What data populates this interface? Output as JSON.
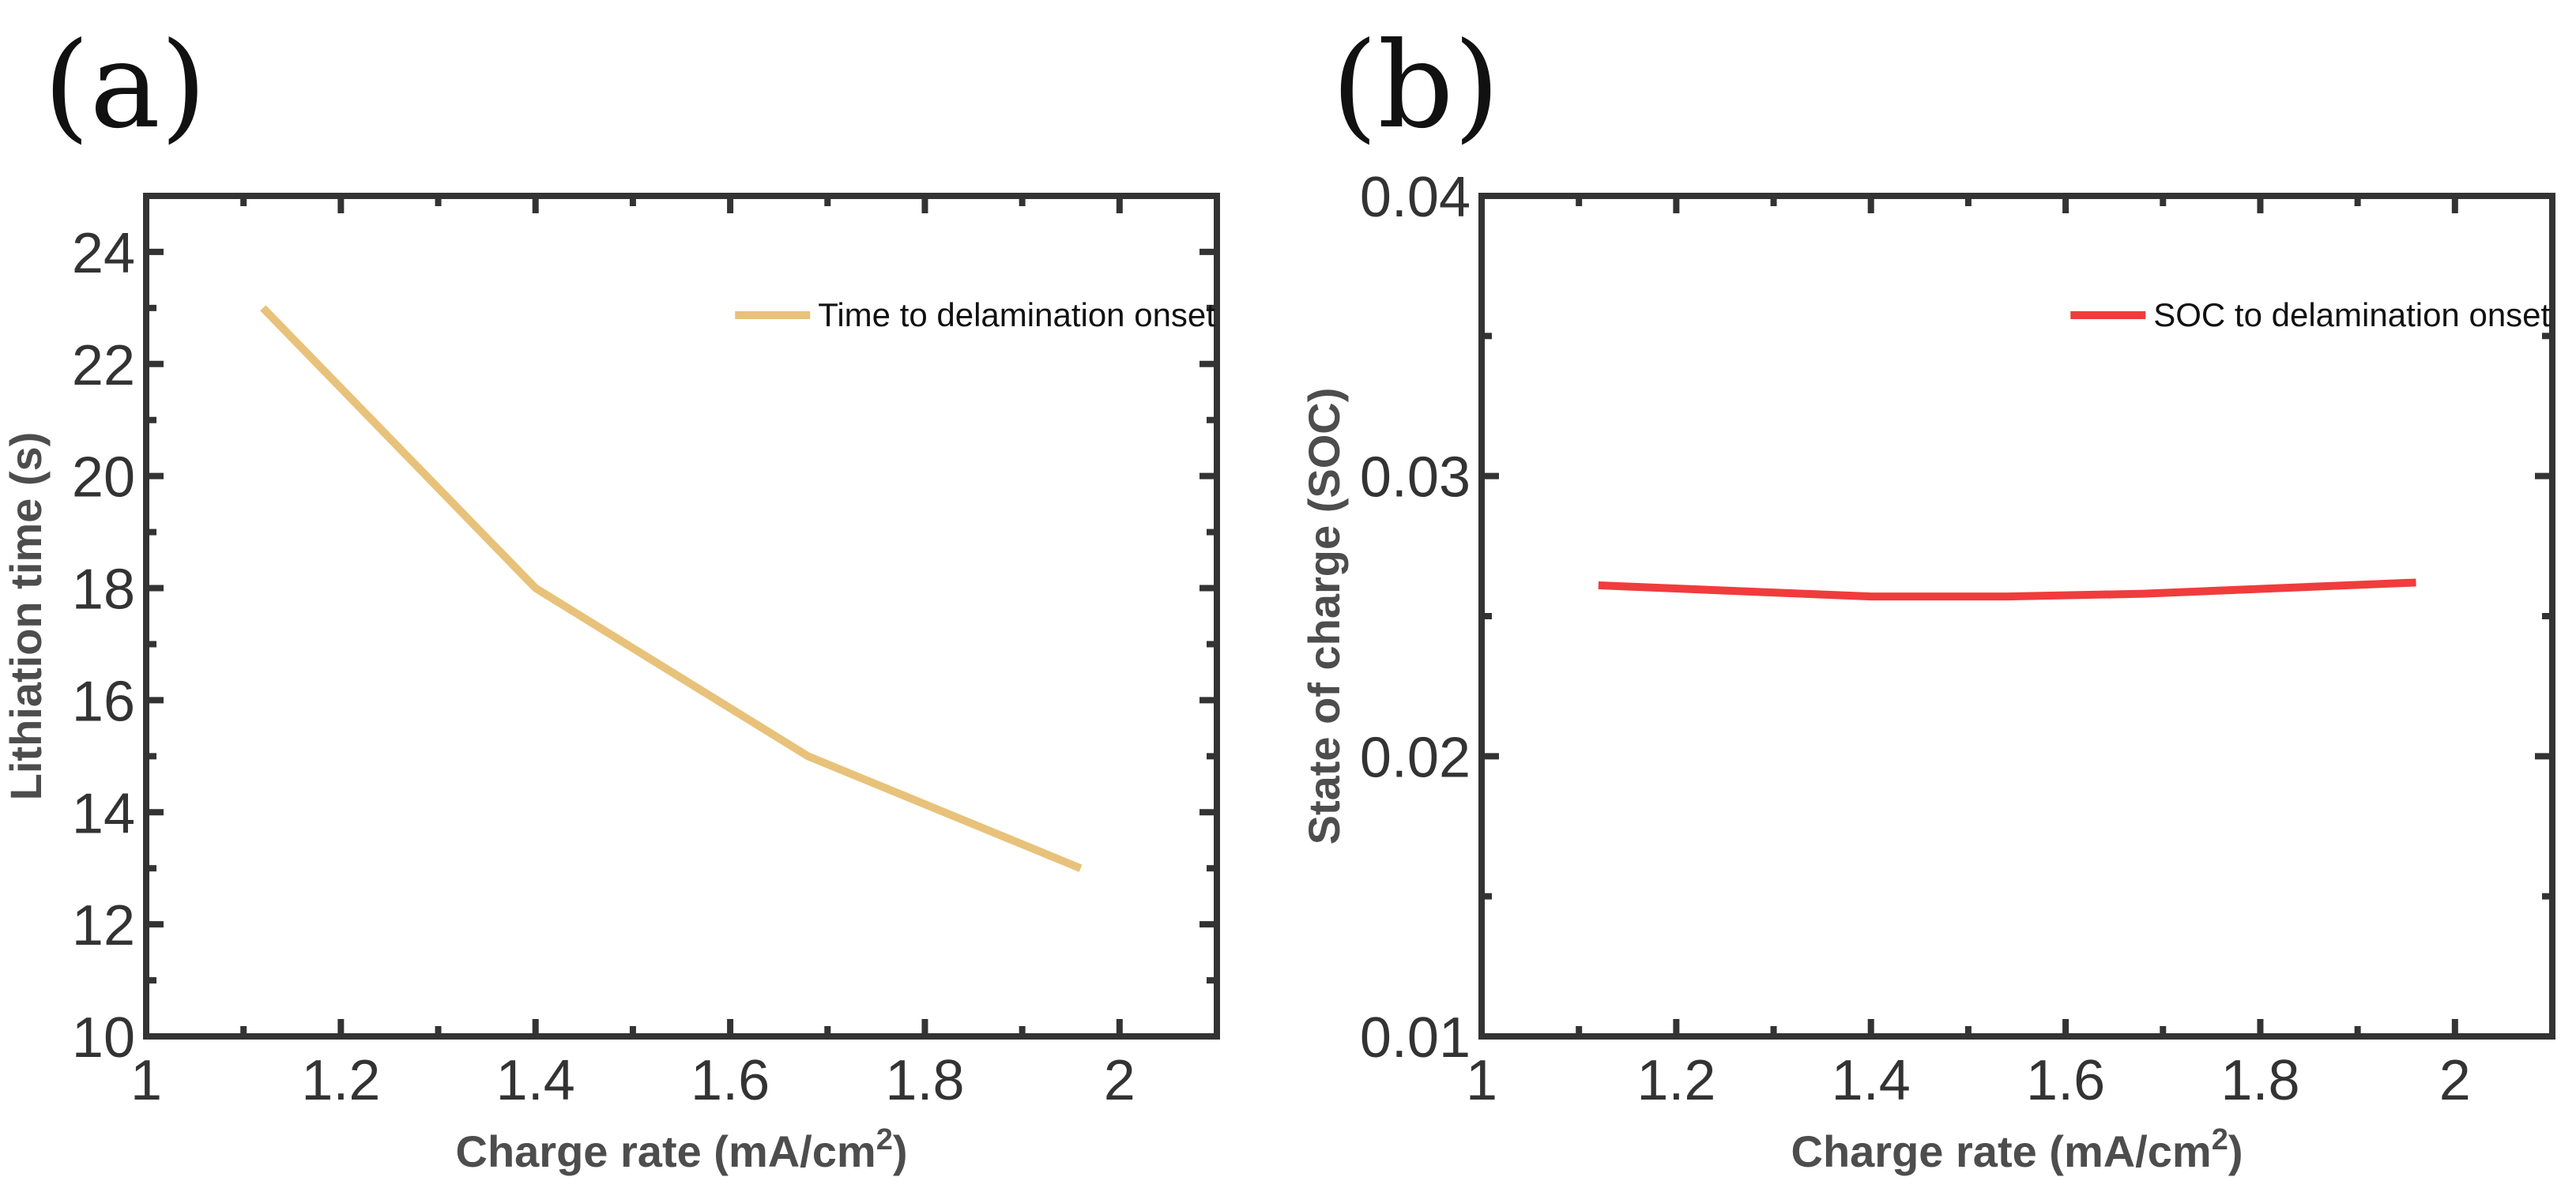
{
  "chart_data": [
    {
      "type": "line",
      "panel": "(a)",
      "x": [
        1.12,
        1.4,
        1.68,
        1.96
      ],
      "series": [
        {
          "name": "Time to delamination onset",
          "values": [
            23,
            18,
            15,
            13
          ],
          "color": "#E8C27A"
        }
      ],
      "xlabel": "Charge rate (mA/cm",
      "xlabel_sup": "2",
      "xlabel_tail": ")",
      "ylabel": "Lithiation time (s)",
      "xlim": [
        1,
        2.1
      ],
      "ylim": [
        10,
        25
      ],
      "xticks": [
        1,
        1.2,
        1.4,
        1.6,
        1.8,
        2
      ],
      "xtick_labels": [
        "1",
        "1.2",
        "1.4",
        "1.6",
        "1.8",
        "2"
      ],
      "yticks": [
        10,
        12,
        14,
        16,
        18,
        20,
        22,
        24
      ],
      "ytick_labels": [
        "10",
        "12",
        "14",
        "16",
        "18",
        "20",
        "22",
        "24"
      ],
      "legend_position": "top-right",
      "grid": false
    },
    {
      "type": "line",
      "panel": "(b)",
      "x": [
        1.12,
        1.26,
        1.4,
        1.54,
        1.68,
        1.82,
        1.96
      ],
      "series": [
        {
          "name": "SOC to delamination onset",
          "values": [
            0.0261,
            0.0259,
            0.0257,
            0.0257,
            0.0258,
            0.026,
            0.0262
          ],
          "color": "#F03C3C"
        }
      ],
      "xlabel": "Charge rate (mA/cm",
      "xlabel_sup": "2",
      "xlabel_tail": ")",
      "ylabel": "State of charge (SOC)",
      "xlim": [
        1,
        2.1
      ],
      "ylim": [
        0.01,
        0.04
      ],
      "xticks": [
        1,
        1.2,
        1.4,
        1.6,
        1.8,
        2
      ],
      "xtick_labels": [
        "1",
        "1.2",
        "1.4",
        "1.6",
        "1.8",
        "2"
      ],
      "yticks": [
        0.01,
        0.02,
        0.03,
        0.04
      ],
      "ytick_labels": [
        "0.01",
        "0.02",
        "0.03",
        "0.04"
      ],
      "legend_position": "top-right",
      "grid": false
    }
  ]
}
